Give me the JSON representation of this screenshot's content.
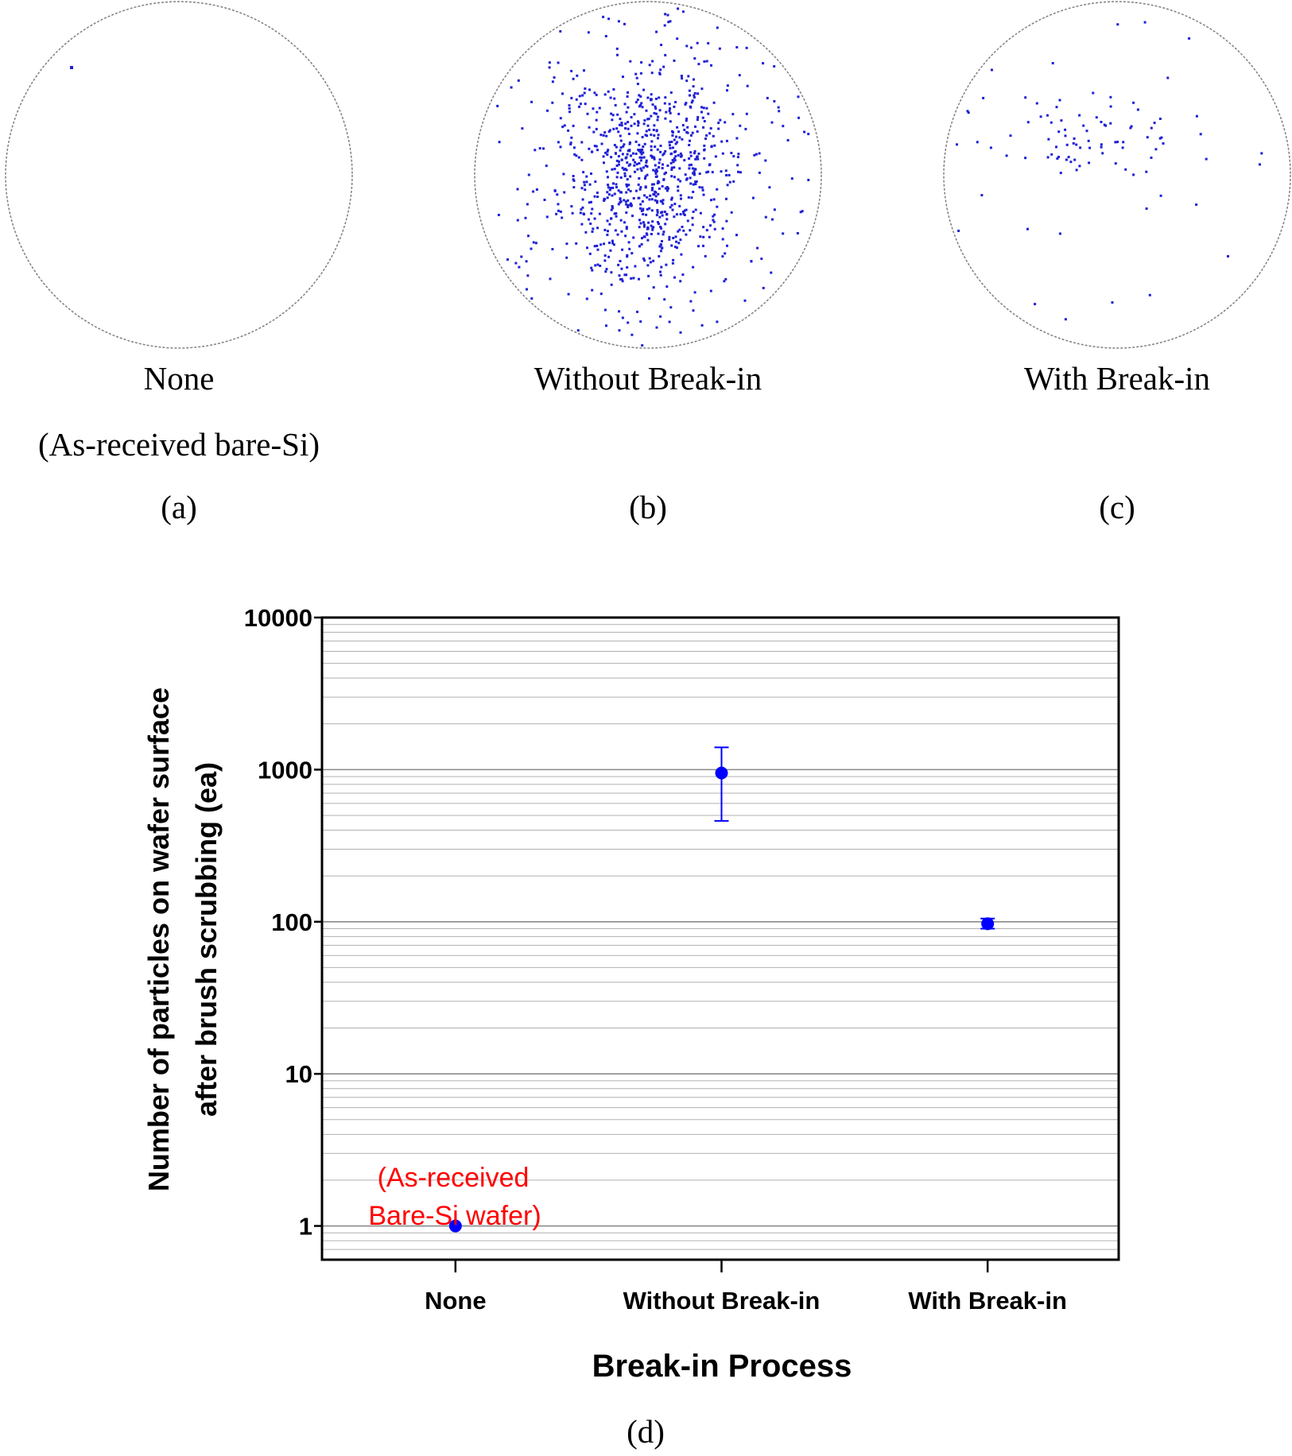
{
  "wafer_maps": [
    {
      "id": "a",
      "name": "None",
      "subtitle": "(As-received bare-Si)",
      "letter": "(a)",
      "particle_count_shown": 1
    },
    {
      "id": "b",
      "name": "Without Break-in",
      "subtitle": "",
      "letter": "(b)",
      "particle_count_shown": 950
    },
    {
      "id": "c",
      "name": "With Break-in",
      "subtitle": "",
      "letter": "(c)",
      "particle_count_shown": 100
    }
  ],
  "colors": {
    "particle": "#1f1fd6",
    "point": "#0000ff",
    "annotation": "#ff0000",
    "grid": "#b0b0b0",
    "wafer_edge": "#808080"
  },
  "chart_data": {
    "type": "scatter",
    "title": "",
    "xlabel": "Break-in Process",
    "ylabel_lines": [
      "Number of particles on wafer surface",
      "after brush scrubbing (ea)"
    ],
    "categories": [
      "None",
      "Without Break-in",
      "With Break-in"
    ],
    "yscale": "log",
    "ylim": [
      0.6,
      10000
    ],
    "yticks": [
      1,
      10,
      100,
      1000,
      10000
    ],
    "ytick_labels": [
      "1",
      "10",
      "100",
      "1000",
      "10000"
    ],
    "grid": true,
    "series": [
      {
        "values": [
          1,
          950,
          97
        ],
        "error_low": [
          1,
          460,
          90
        ],
        "error_high": [
          1,
          1400,
          105
        ]
      }
    ],
    "annotation": {
      "lines": [
        "(As-received",
        "Bare-Si wafer)"
      ],
      "category": "None"
    },
    "panel_label": "(d)"
  }
}
